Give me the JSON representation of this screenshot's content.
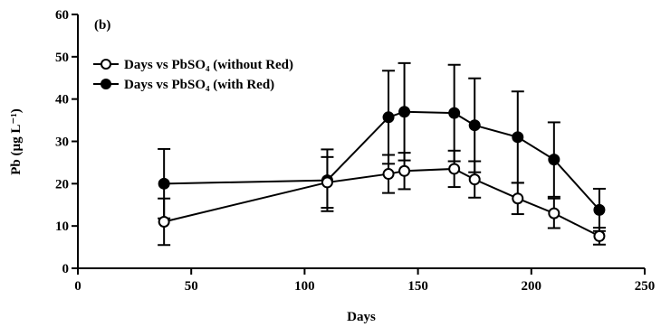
{
  "chart_data": {
    "type": "line",
    "panel_label": "(b)",
    "xlabel": "Days",
    "ylabel": "Pb (µg L⁻¹)",
    "xlim": [
      0,
      250
    ],
    "ylim": [
      0,
      60
    ],
    "xticks": [
      0,
      50,
      100,
      150,
      200,
      250
    ],
    "yticks": [
      0,
      10,
      20,
      30,
      40,
      50,
      60
    ],
    "grid": false,
    "legend_position": "top-left",
    "series": [
      {
        "name": "Days vs PbSO₄ (without Red)",
        "marker": "open-circle",
        "color": "#000000",
        "x": [
          38,
          110,
          137,
          144,
          166,
          175,
          194,
          210,
          230
        ],
        "y": [
          11.0,
          20.3,
          22.3,
          23.0,
          23.5,
          21.0,
          16.5,
          13.0,
          7.6
        ],
        "err_upper": [
          5.5,
          6.0,
          4.5,
          4.3,
          4.3,
          4.3,
          3.7,
          3.5,
          2.0
        ],
        "err_lower": [
          5.5,
          6.0,
          4.5,
          4.3,
          4.3,
          4.3,
          3.7,
          3.5,
          2.0
        ]
      },
      {
        "name": "Days vs PbSO₄ (with Red)",
        "marker": "filled-circle",
        "color": "#000000",
        "x": [
          38,
          110,
          137,
          144,
          166,
          175,
          194,
          210,
          230
        ],
        "y": [
          20.0,
          20.8,
          35.7,
          37.0,
          36.7,
          33.8,
          31.0,
          25.7,
          13.8
        ],
        "err_upper": [
          8.2,
          7.3,
          11.0,
          11.5,
          11.4,
          11.1,
          10.8,
          8.8,
          5.0
        ],
        "err_lower": [
          8.2,
          7.3,
          11.0,
          11.5,
          11.4,
          11.1,
          10.8,
          8.8,
          5.0
        ]
      }
    ]
  }
}
